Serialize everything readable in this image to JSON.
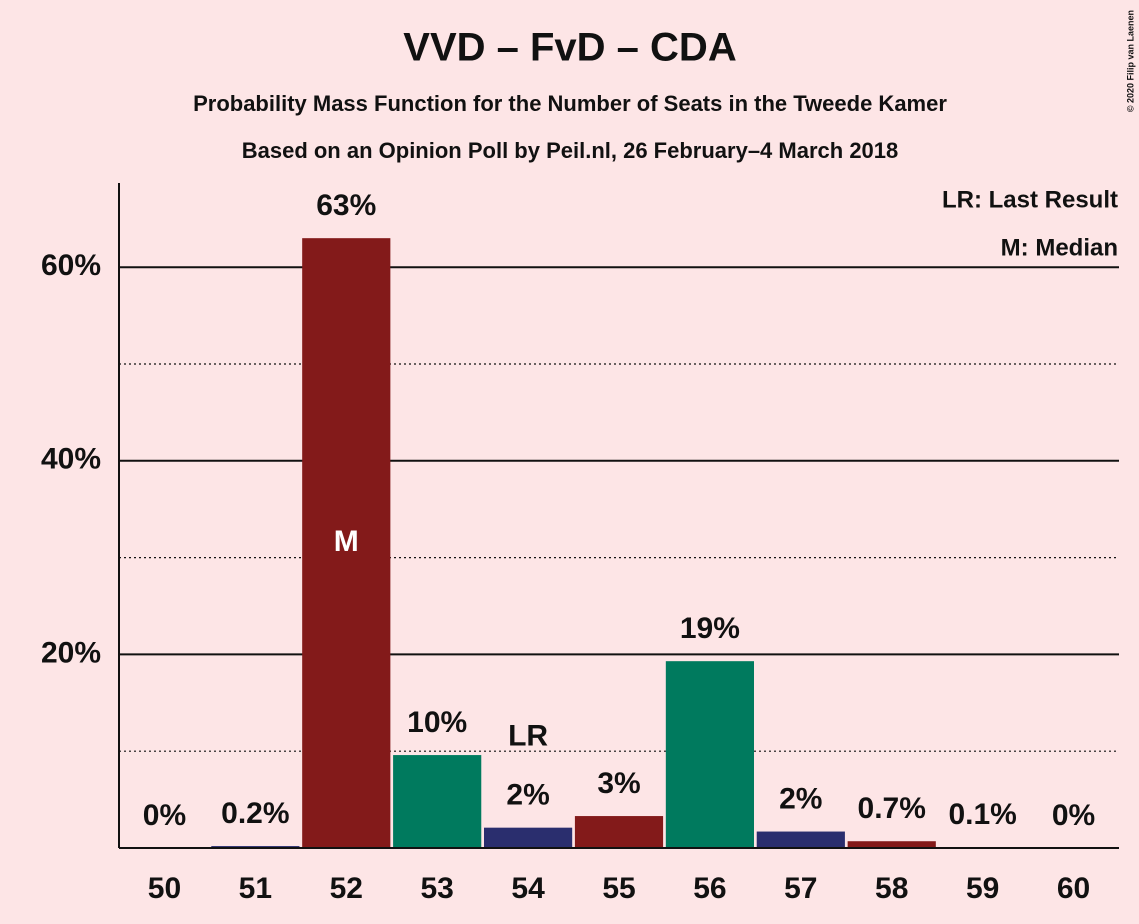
{
  "chart_data": {
    "type": "bar",
    "title": "VVD – FvD – CDA",
    "subtitle": "Probability Mass Function for the Number of Seats in the Tweede Kamer",
    "subtitle2": "Based on an Opinion Poll by Peil.nl, 26 February–4 March 2018",
    "categories": [
      "50",
      "51",
      "52",
      "53",
      "54",
      "55",
      "56",
      "57",
      "58",
      "59",
      "60"
    ],
    "values": [
      0,
      0.2,
      63,
      9.6,
      2.1,
      3.3,
      19.3,
      1.7,
      0.7,
      0.1,
      0
    ],
    "value_labels": [
      "0%",
      "0.2%",
      "63%",
      "10%",
      "2%",
      "3%",
      "19%",
      "2%",
      "0.7%",
      "0.1%",
      "0%"
    ],
    "colors": [
      "#007a5e",
      "#2a2e6e",
      "#831a1a",
      "#007a5e",
      "#2a2e6e",
      "#831a1a",
      "#007a5e",
      "#2a2e6e",
      "#831a1a",
      "#007a5e",
      "#2a2e6e"
    ],
    "ylim": [
      0,
      68.7
    ],
    "yticks": [
      {
        "value": 20,
        "label": "20%"
      },
      {
        "value": 40,
        "label": "40%"
      },
      {
        "value": 60,
        "label": "60%"
      }
    ],
    "minor_grid": [
      10,
      30,
      50
    ],
    "grid": true,
    "annotations": [
      {
        "text": "M",
        "category": "52",
        "position": "inside"
      },
      {
        "text": "LR",
        "category": "54",
        "position": "above"
      }
    ],
    "legend": [
      "LR: Last Result",
      "M: Median"
    ],
    "legend_corner": "top-right",
    "copyright": "© 2020 Filip van Laenen"
  }
}
